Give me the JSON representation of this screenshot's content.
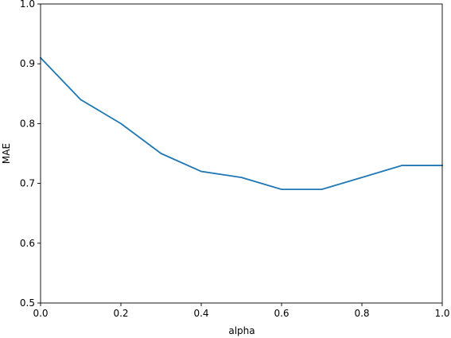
{
  "chart_data": {
    "type": "line",
    "title": "",
    "xlabel": "alpha",
    "ylabel": "MAE",
    "xlim": [
      0.0,
      1.0
    ],
    "ylim": [
      0.5,
      1.0
    ],
    "xticks": [
      "0.0",
      "0.2",
      "0.4",
      "0.6",
      "0.8",
      "1.0"
    ],
    "yticks": [
      "0.5",
      "0.6",
      "0.7",
      "0.8",
      "0.9",
      "1.0"
    ],
    "grid": false,
    "legend": "none",
    "series": [
      {
        "color": "#1f77b4",
        "x": [
          0.0,
          0.1,
          0.2,
          0.3,
          0.4,
          0.5,
          0.6,
          0.7,
          0.8,
          0.9,
          1.0
        ],
        "y": [
          0.91,
          0.84,
          0.8,
          0.75,
          0.72,
          0.71,
          0.69,
          0.69,
          0.71,
          0.73,
          0.73
        ]
      }
    ]
  }
}
